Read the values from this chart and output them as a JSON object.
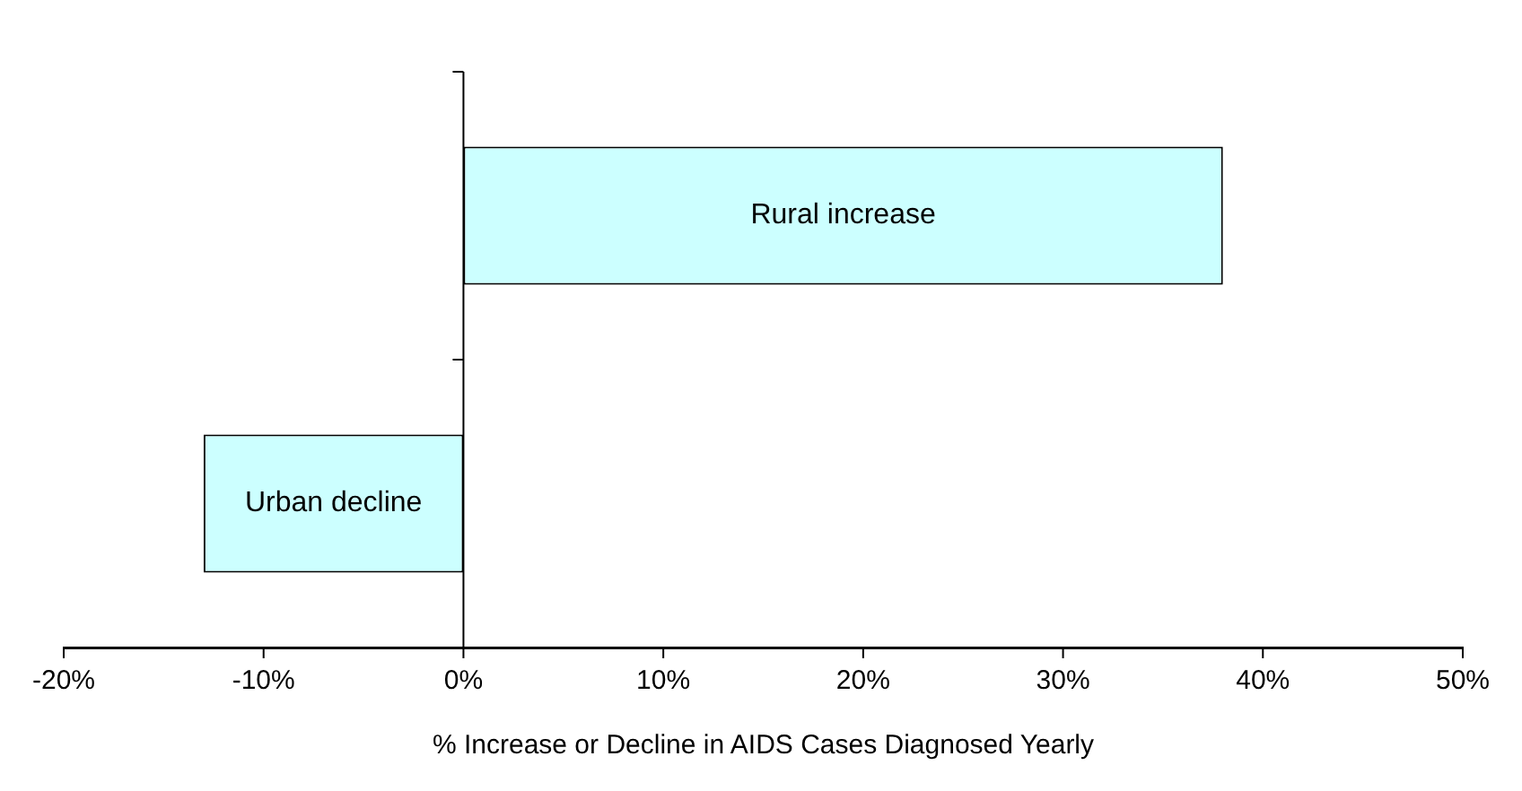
{
  "chart_data": {
    "type": "bar",
    "orientation": "horizontal",
    "xlabel": "% Increase or Decline in AIDS Cases Diagnosed Yearly",
    "categories": [
      "Rural increase",
      "Urban decline"
    ],
    "values": [
      38,
      -13
    ],
    "color": "#ccffff",
    "xlim": [
      -20,
      50
    ],
    "xticks": [
      {
        "value": -20,
        "label": "-20%"
      },
      {
        "value": -10,
        "label": "-10%"
      },
      {
        "value": 0,
        "label": "0%"
      },
      {
        "value": 10,
        "label": "10%"
      },
      {
        "value": 20,
        "label": "20%"
      },
      {
        "value": 30,
        "label": "30%"
      },
      {
        "value": 40,
        "label": "40%"
      },
      {
        "value": 50,
        "label": "50%"
      }
    ],
    "legend": false
  }
}
